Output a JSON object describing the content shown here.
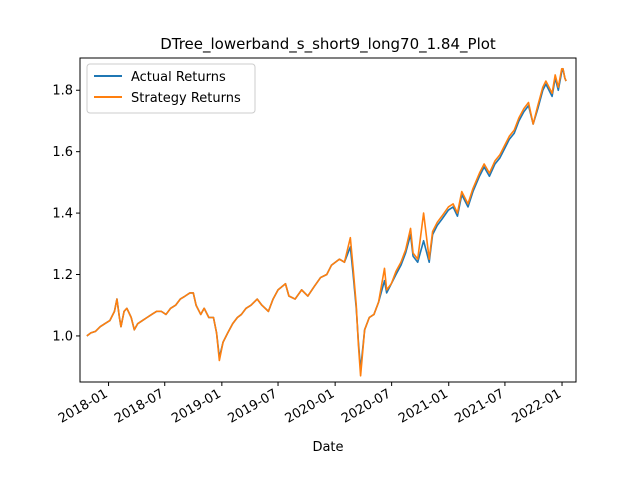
{
  "chart_data": {
    "type": "line",
    "title": "DTree_lowerband_s_short9_long70_1.84_Plot",
    "xlabel": "Date",
    "ylabel": "",
    "xlim": [
      "2017-10-01",
      "2022-02-15"
    ],
    "ylim": [
      0.85,
      1.905
    ],
    "x_ticks": [
      "2018-01",
      "2018-07",
      "2019-01",
      "2019-07",
      "2020-01",
      "2020-07",
      "2021-01",
      "2021-07",
      "2022-01"
    ],
    "y_ticks": [
      "1.0",
      "1.2",
      "1.4",
      "1.6",
      "1.8"
    ],
    "legend_position": "upper-left",
    "grid": false,
    "series": [
      {
        "name": "Actual Returns",
        "color": "#1f77b4",
        "points": [
          [
            "2017-10-23",
            1.0
          ],
          [
            "2017-11-05",
            1.01
          ],
          [
            "2017-11-20",
            1.015
          ],
          [
            "2017-12-05",
            1.03
          ],
          [
            "2017-12-20",
            1.04
          ],
          [
            "2018-01-05",
            1.05
          ],
          [
            "2018-01-20",
            1.08
          ],
          [
            "2018-01-28",
            1.12
          ],
          [
            "2018-02-05",
            1.06
          ],
          [
            "2018-02-10",
            1.03
          ],
          [
            "2018-02-20",
            1.08
          ],
          [
            "2018-03-01",
            1.09
          ],
          [
            "2018-03-15",
            1.06
          ],
          [
            "2018-03-25",
            1.02
          ],
          [
            "2018-04-05",
            1.04
          ],
          [
            "2018-04-20",
            1.05
          ],
          [
            "2018-05-05",
            1.06
          ],
          [
            "2018-05-20",
            1.07
          ],
          [
            "2018-06-05",
            1.08
          ],
          [
            "2018-06-20",
            1.08
          ],
          [
            "2018-07-05",
            1.07
          ],
          [
            "2018-07-20",
            1.09
          ],
          [
            "2018-08-05",
            1.1
          ],
          [
            "2018-08-20",
            1.12
          ],
          [
            "2018-09-05",
            1.13
          ],
          [
            "2018-09-20",
            1.14
          ],
          [
            "2018-10-01",
            1.14
          ],
          [
            "2018-10-10",
            1.1
          ],
          [
            "2018-10-25",
            1.07
          ],
          [
            "2018-11-05",
            1.09
          ],
          [
            "2018-11-20",
            1.06
          ],
          [
            "2018-12-05",
            1.06
          ],
          [
            "2018-12-15",
            1.01
          ],
          [
            "2018-12-24",
            0.93
          ],
          [
            "2019-01-05",
            0.98
          ],
          [
            "2019-01-20",
            1.01
          ],
          [
            "2019-02-05",
            1.04
          ],
          [
            "2019-02-20",
            1.06
          ],
          [
            "2019-03-05",
            1.07
          ],
          [
            "2019-03-20",
            1.09
          ],
          [
            "2019-04-05",
            1.1
          ],
          [
            "2019-04-25",
            1.12
          ],
          [
            "2019-05-10",
            1.1
          ],
          [
            "2019-05-31",
            1.08
          ],
          [
            "2019-06-15",
            1.12
          ],
          [
            "2019-07-01",
            1.15
          ],
          [
            "2019-07-25",
            1.17
          ],
          [
            "2019-08-05",
            1.13
          ],
          [
            "2019-08-25",
            1.12
          ],
          [
            "2019-09-15",
            1.15
          ],
          [
            "2019-10-05",
            1.13
          ],
          [
            "2019-10-25",
            1.16
          ],
          [
            "2019-11-15",
            1.19
          ],
          [
            "2019-12-05",
            1.2
          ],
          [
            "2019-12-20",
            1.23
          ],
          [
            "2020-01-15",
            1.25
          ],
          [
            "2020-01-31",
            1.24
          ],
          [
            "2020-02-19",
            1.29
          ],
          [
            "2020-02-28",
            1.2
          ],
          [
            "2020-03-09",
            1.09
          ],
          [
            "2020-03-16",
            0.98
          ],
          [
            "2020-03-23",
            0.89
          ],
          [
            "2020-04-05",
            1.02
          ],
          [
            "2020-04-20",
            1.06
          ],
          [
            "2020-05-05",
            1.07
          ],
          [
            "2020-05-20",
            1.11
          ],
          [
            "2020-06-08",
            1.18
          ],
          [
            "2020-06-15",
            1.14
          ],
          [
            "2020-06-30",
            1.17
          ],
          [
            "2020-07-15",
            1.2
          ],
          [
            "2020-07-31",
            1.23
          ],
          [
            "2020-08-15",
            1.27
          ],
          [
            "2020-08-31",
            1.33
          ],
          [
            "2020-09-08",
            1.26
          ],
          [
            "2020-09-23",
            1.24
          ],
          [
            "2020-10-12",
            1.31
          ],
          [
            "2020-10-30",
            1.24
          ],
          [
            "2020-11-10",
            1.33
          ],
          [
            "2020-11-25",
            1.36
          ],
          [
            "2020-12-10",
            1.38
          ],
          [
            "2020-12-31",
            1.41
          ],
          [
            "2021-01-15",
            1.42
          ],
          [
            "2021-01-29",
            1.39
          ],
          [
            "2021-02-12",
            1.46
          ],
          [
            "2021-03-04",
            1.42
          ],
          [
            "2021-03-20",
            1.47
          ],
          [
            "2021-04-10",
            1.52
          ],
          [
            "2021-04-25",
            1.55
          ],
          [
            "2021-05-12",
            1.52
          ],
          [
            "2021-05-30",
            1.56
          ],
          [
            "2021-06-15",
            1.58
          ],
          [
            "2021-06-30",
            1.61
          ],
          [
            "2021-07-15",
            1.64
          ],
          [
            "2021-07-31",
            1.66
          ],
          [
            "2021-08-15",
            1.7
          ],
          [
            "2021-08-31",
            1.73
          ],
          [
            "2021-09-15",
            1.75
          ],
          [
            "2021-09-30",
            1.69
          ],
          [
            "2021-10-15",
            1.74
          ],
          [
            "2021-10-31",
            1.8
          ],
          [
            "2021-11-10",
            1.82
          ],
          [
            "2021-11-30",
            1.78
          ],
          [
            "2021-12-10",
            1.84
          ],
          [
            "2021-12-20",
            1.8
          ],
          [
            "2021-12-31",
            1.86
          ],
          [
            "2022-01-04",
            1.87
          ],
          [
            "2022-01-10",
            1.84
          ],
          [
            "2022-01-14",
            1.83
          ]
        ]
      },
      {
        "name": "Strategy Returns",
        "color": "#ff7f0e",
        "points": [
          [
            "2017-10-23",
            1.0
          ],
          [
            "2017-11-05",
            1.01
          ],
          [
            "2017-11-20",
            1.015
          ],
          [
            "2017-12-05",
            1.03
          ],
          [
            "2017-12-20",
            1.04
          ],
          [
            "2018-01-05",
            1.05
          ],
          [
            "2018-01-20",
            1.08
          ],
          [
            "2018-01-28",
            1.12
          ],
          [
            "2018-02-05",
            1.06
          ],
          [
            "2018-02-10",
            1.03
          ],
          [
            "2018-02-20",
            1.08
          ],
          [
            "2018-03-01",
            1.09
          ],
          [
            "2018-03-15",
            1.06
          ],
          [
            "2018-03-25",
            1.02
          ],
          [
            "2018-04-05",
            1.04
          ],
          [
            "2018-04-20",
            1.05
          ],
          [
            "2018-05-05",
            1.06
          ],
          [
            "2018-05-20",
            1.07
          ],
          [
            "2018-06-05",
            1.08
          ],
          [
            "2018-06-20",
            1.08
          ],
          [
            "2018-07-05",
            1.07
          ],
          [
            "2018-07-20",
            1.09
          ],
          [
            "2018-08-05",
            1.1
          ],
          [
            "2018-08-20",
            1.12
          ],
          [
            "2018-09-05",
            1.13
          ],
          [
            "2018-09-20",
            1.14
          ],
          [
            "2018-10-01",
            1.14
          ],
          [
            "2018-10-10",
            1.1
          ],
          [
            "2018-10-25",
            1.07
          ],
          [
            "2018-11-05",
            1.09
          ],
          [
            "2018-11-20",
            1.06
          ],
          [
            "2018-12-05",
            1.06
          ],
          [
            "2018-12-15",
            1.01
          ],
          [
            "2018-12-24",
            0.92
          ],
          [
            "2019-01-05",
            0.98
          ],
          [
            "2019-01-20",
            1.01
          ],
          [
            "2019-02-05",
            1.04
          ],
          [
            "2019-02-20",
            1.06
          ],
          [
            "2019-03-05",
            1.07
          ],
          [
            "2019-03-20",
            1.09
          ],
          [
            "2019-04-05",
            1.1
          ],
          [
            "2019-04-25",
            1.12
          ],
          [
            "2019-05-10",
            1.1
          ],
          [
            "2019-05-31",
            1.08
          ],
          [
            "2019-06-15",
            1.12
          ],
          [
            "2019-07-01",
            1.15
          ],
          [
            "2019-07-25",
            1.17
          ],
          [
            "2019-08-05",
            1.13
          ],
          [
            "2019-08-25",
            1.12
          ],
          [
            "2019-09-15",
            1.15
          ],
          [
            "2019-10-05",
            1.13
          ],
          [
            "2019-10-25",
            1.16
          ],
          [
            "2019-11-15",
            1.19
          ],
          [
            "2019-12-05",
            1.2
          ],
          [
            "2019-12-20",
            1.23
          ],
          [
            "2020-01-15",
            1.25
          ],
          [
            "2020-01-31",
            1.24
          ],
          [
            "2020-02-19",
            1.32
          ],
          [
            "2020-02-28",
            1.22
          ],
          [
            "2020-03-09",
            1.1
          ],
          [
            "2020-03-16",
            0.97
          ],
          [
            "2020-03-23",
            0.87
          ],
          [
            "2020-04-05",
            1.02
          ],
          [
            "2020-04-20",
            1.06
          ],
          [
            "2020-05-05",
            1.07
          ],
          [
            "2020-05-20",
            1.11
          ],
          [
            "2020-06-08",
            1.22
          ],
          [
            "2020-06-15",
            1.15
          ],
          [
            "2020-06-30",
            1.17
          ],
          [
            "2020-07-15",
            1.21
          ],
          [
            "2020-07-31",
            1.24
          ],
          [
            "2020-08-15",
            1.28
          ],
          [
            "2020-08-31",
            1.35
          ],
          [
            "2020-09-08",
            1.27
          ],
          [
            "2020-09-23",
            1.25
          ],
          [
            "2020-10-12",
            1.4
          ],
          [
            "2020-10-30",
            1.25
          ],
          [
            "2020-11-10",
            1.34
          ],
          [
            "2020-11-25",
            1.37
          ],
          [
            "2020-12-10",
            1.39
          ],
          [
            "2020-12-31",
            1.42
          ],
          [
            "2021-01-15",
            1.43
          ],
          [
            "2021-01-29",
            1.4
          ],
          [
            "2021-02-12",
            1.47
          ],
          [
            "2021-03-04",
            1.43
          ],
          [
            "2021-03-20",
            1.48
          ],
          [
            "2021-04-10",
            1.53
          ],
          [
            "2021-04-25",
            1.56
          ],
          [
            "2021-05-12",
            1.53
          ],
          [
            "2021-05-30",
            1.57
          ],
          [
            "2021-06-15",
            1.59
          ],
          [
            "2021-06-30",
            1.62
          ],
          [
            "2021-07-15",
            1.65
          ],
          [
            "2021-07-31",
            1.67
          ],
          [
            "2021-08-15",
            1.71
          ],
          [
            "2021-08-31",
            1.74
          ],
          [
            "2021-09-15",
            1.76
          ],
          [
            "2021-09-30",
            1.69
          ],
          [
            "2021-10-15",
            1.75
          ],
          [
            "2021-10-31",
            1.81
          ],
          [
            "2021-11-10",
            1.83
          ],
          [
            "2021-11-30",
            1.79
          ],
          [
            "2021-12-10",
            1.85
          ],
          [
            "2021-12-20",
            1.81
          ],
          [
            "2021-12-31",
            1.87
          ],
          [
            "2022-01-04",
            1.87
          ],
          [
            "2022-01-10",
            1.84
          ],
          [
            "2022-01-14",
            1.83
          ]
        ]
      }
    ]
  }
}
